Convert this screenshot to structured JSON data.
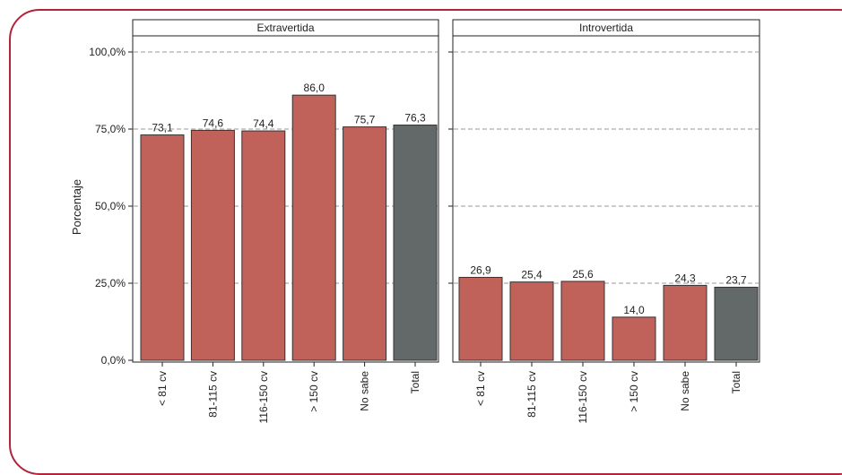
{
  "chart_data": {
    "type": "bar",
    "ylabel": "Porcentaje",
    "ylim": [
      0,
      100
    ],
    "yticks": [
      "0,0%",
      "25,0%",
      "50,0%",
      "75,0%",
      "100,0%"
    ],
    "yticks_values": [
      0,
      25,
      50,
      75,
      100
    ],
    "grid": "horizontal-dashed",
    "colors": {
      "bar": "#c0625a",
      "total": "#636868",
      "grid": "#9a9a9a"
    },
    "categories": [
      "< 81 cv",
      "81-115 cv",
      "116-150 cv",
      "> 150 cv",
      "No sabe",
      "Total"
    ],
    "panels": [
      {
        "title": "Extravertida",
        "values": [
          73.1,
          74.6,
          74.4,
          86.0,
          75.7,
          76.3
        ],
        "value_labels": [
          "73,1",
          "74,6",
          "74,4",
          "86,0",
          "75,7",
          "76,3"
        ]
      },
      {
        "title": "Introvertida",
        "values": [
          26.9,
          25.4,
          25.6,
          14.0,
          24.3,
          23.7
        ],
        "value_labels": [
          "26,9",
          "25,4",
          "25,6",
          "14,0",
          "24,3",
          "23,7"
        ]
      }
    ]
  }
}
